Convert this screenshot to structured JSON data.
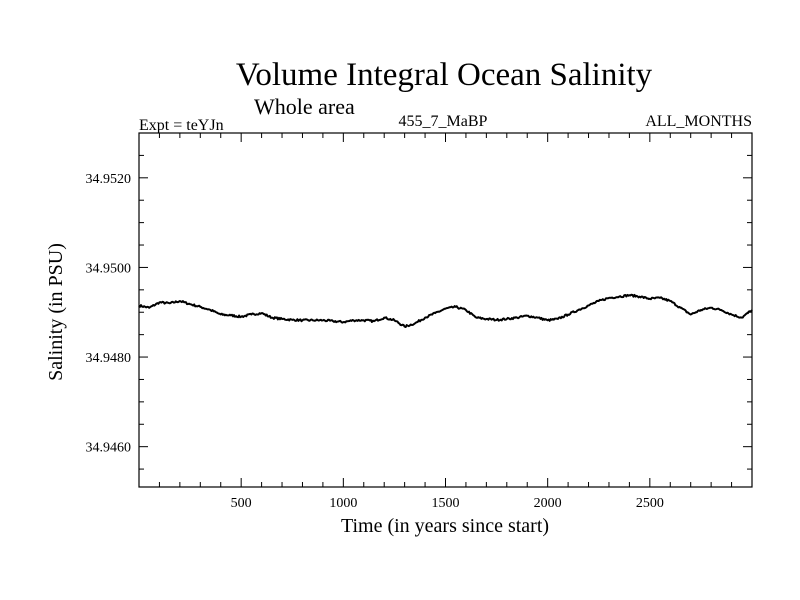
{
  "chart_data": {
    "type": "line",
    "title": "Volume Integral Ocean Salinity",
    "subtitle": "Whole area",
    "experiment_label": "Expt = teYJn",
    "run_label": "455_7_MaBP",
    "period_label": "ALL_MONTHS",
    "xlabel": "Time (in years since start)",
    "ylabel": "Salinity (in PSU)",
    "xlim": [
      0,
      3000
    ],
    "ylim": [
      34.9451,
      34.953
    ],
    "x_ticks": [
      500,
      1000,
      1500,
      2000,
      2500
    ],
    "x_tick_labels": [
      "500",
      "1000",
      "1500",
      "2000",
      "2500"
    ],
    "y_ticks": [
      34.946,
      34.948,
      34.95,
      34.952
    ],
    "y_tick_labels": [
      "34.9460",
      "34.9480",
      "34.9500",
      "34.9520"
    ],
    "grid": false,
    "series": [
      {
        "name": "Salinity",
        "color": "#000000",
        "x": [
          0,
          50,
          100,
          150,
          200,
          250,
          300,
          350,
          400,
          450,
          500,
          550,
          600,
          650,
          700,
          750,
          800,
          850,
          900,
          950,
          1000,
          1050,
          1100,
          1150,
          1200,
          1250,
          1300,
          1350,
          1400,
          1450,
          1500,
          1550,
          1600,
          1650,
          1700,
          1750,
          1800,
          1850,
          1900,
          1950,
          2000,
          2050,
          2100,
          2150,
          2200,
          2250,
          2300,
          2350,
          2400,
          2450,
          2500,
          2550,
          2600,
          2650,
          2700,
          2750,
          2800,
          2850,
          2900,
          2950,
          3000
        ],
        "values": [
          34.94915,
          34.9491,
          34.94922,
          34.9492,
          34.94925,
          34.94918,
          34.94912,
          34.94905,
          34.94895,
          34.94893,
          34.9489,
          34.94895,
          34.94898,
          34.94888,
          34.94885,
          34.94883,
          34.94882,
          34.94882,
          34.94882,
          34.9488,
          34.94878,
          34.94882,
          34.94882,
          34.9488,
          34.94888,
          34.94882,
          34.94868,
          34.94875,
          34.94888,
          34.94898,
          34.94908,
          34.94912,
          34.94905,
          34.94888,
          34.94885,
          34.94883,
          34.94885,
          34.94888,
          34.94892,
          34.94888,
          34.94882,
          34.94885,
          34.94895,
          34.94905,
          34.94915,
          34.94925,
          34.94932,
          34.94935,
          34.94938,
          34.94935,
          34.9493,
          34.94932,
          34.94925,
          34.9491,
          34.94895,
          34.94905,
          34.9491,
          34.94905,
          34.94895,
          34.94888,
          34.94905
        ]
      }
    ]
  }
}
